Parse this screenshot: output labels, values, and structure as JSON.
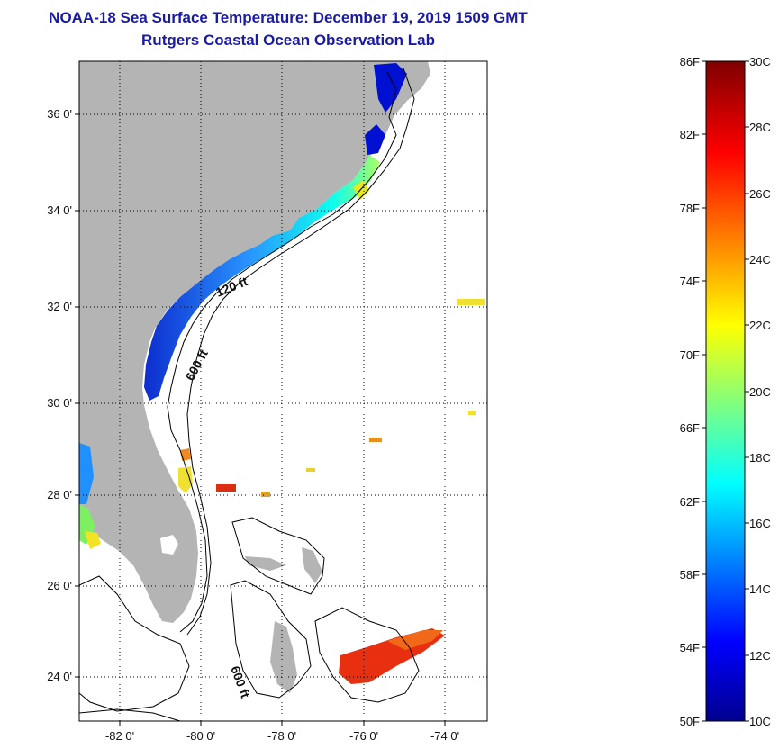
{
  "header": {
    "title": "NOAA-18 Sea Surface Temperature:  December 19, 2019 1509 GMT",
    "subtitle": "Rutgers Coastal Ocean Observation Lab"
  },
  "map": {
    "lat_ticks": [
      "36 0'",
      "34 0'",
      "32 0'",
      "30 0'",
      "28 0'",
      "26 0'",
      "24 0'"
    ],
    "lon_ticks": [
      "-82 0'",
      "-80 0'",
      "-78 0'",
      "-76 0'",
      "-74 0'"
    ],
    "contour_labels": [
      "120 ft",
      "600 ft",
      "600 ft"
    ],
    "colors": {
      "land": "#b4b4b4",
      "ocean": "#ffffff",
      "frame": "#000000"
    }
  },
  "colorbar": {
    "fahrenheit_labels": [
      "86F",
      "82F",
      "78F",
      "74F",
      "70F",
      "66F",
      "62F",
      "58F",
      "54F",
      "50F"
    ],
    "celsius_labels": [
      "30C",
      "28C",
      "26C",
      "24C",
      "22C",
      "20C",
      "18C",
      "16C",
      "14C",
      "12C",
      "10C"
    ]
  }
}
